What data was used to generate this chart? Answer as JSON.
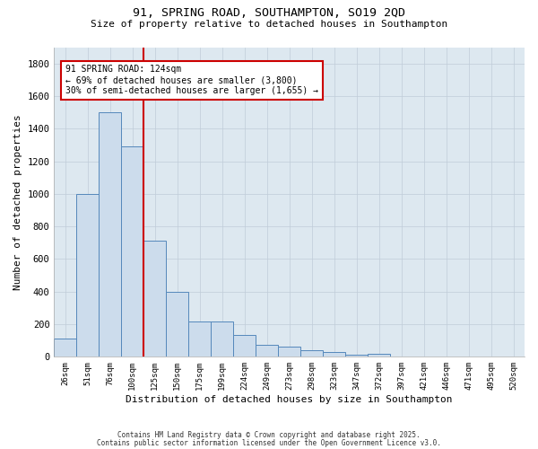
{
  "title_line1": "91, SPRING ROAD, SOUTHAMPTON, SO19 2QD",
  "title_line2": "Size of property relative to detached houses in Southampton",
  "xlabel": "Distribution of detached houses by size in Southampton",
  "ylabel": "Number of detached properties",
  "bar_color": "#ccdcec",
  "bar_edge_color": "#5588bb",
  "categories": [
    "26sqm",
    "51sqm",
    "76sqm",
    "100sqm",
    "125sqm",
    "150sqm",
    "175sqm",
    "199sqm",
    "224sqm",
    "249sqm",
    "273sqm",
    "298sqm",
    "323sqm",
    "347sqm",
    "372sqm",
    "397sqm",
    "421sqm",
    "446sqm",
    "471sqm",
    "495sqm",
    "520sqm"
  ],
  "values": [
    110,
    1000,
    1500,
    1290,
    710,
    400,
    215,
    215,
    135,
    75,
    65,
    40,
    30,
    15,
    20,
    0,
    0,
    0,
    0,
    0,
    0
  ],
  "ylim": [
    0,
    1900
  ],
  "yticks": [
    0,
    200,
    400,
    600,
    800,
    1000,
    1200,
    1400,
    1600,
    1800
  ],
  "red_line_x": 4.0,
  "annotation_text": "91 SPRING ROAD: 124sqm\n← 69% of detached houses are smaller (3,800)\n30% of semi-detached houses are larger (1,655) →",
  "annotation_box_color": "#ffffff",
  "annotation_box_edge_color": "#cc0000",
  "footer_line1": "Contains HM Land Registry data © Crown copyright and database right 2025.",
  "footer_line2": "Contains public sector information licensed under the Open Government Licence v3.0.",
  "background_color": "#ffffff",
  "axes_bg_color": "#dde8f0",
  "grid_color": "#c0ccd8",
  "fig_width": 6.0,
  "fig_height": 5.0,
  "dpi": 100
}
